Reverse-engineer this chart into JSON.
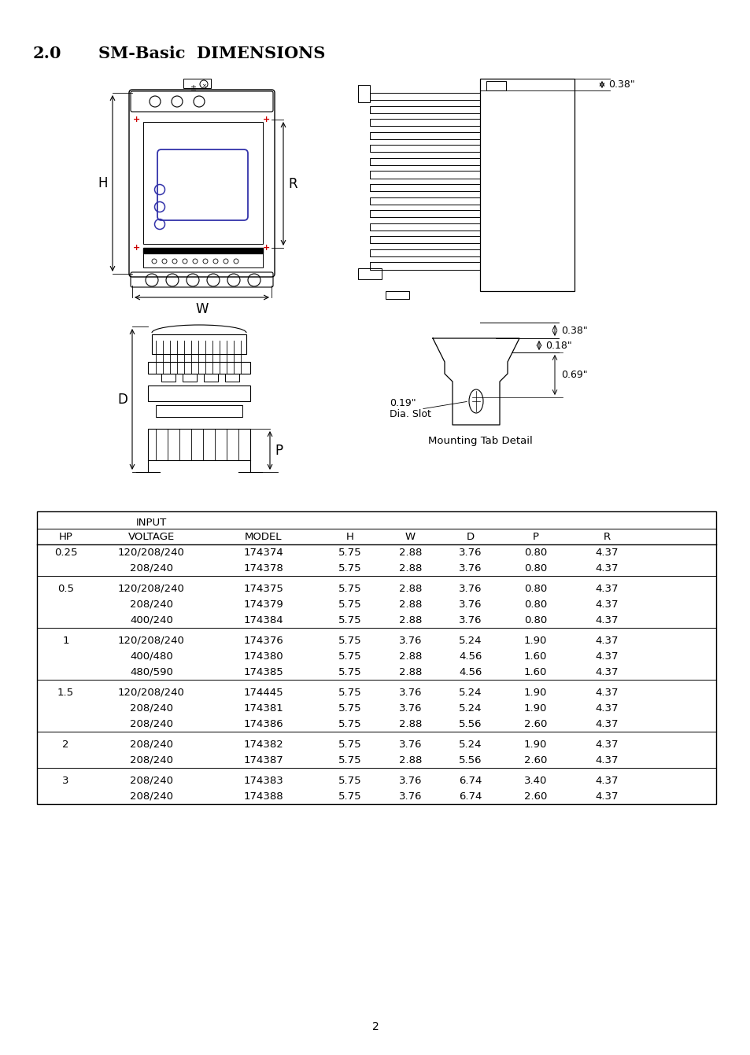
{
  "title_number": "2.0",
  "title_text": "SM-Basic  DIMENSIONS",
  "page_number": "2",
  "table_header_row1": [
    "",
    "INPUT",
    "",
    "",
    "",
    "",
    "",
    ""
  ],
  "table_header_row2": [
    "HP",
    "VOLTAGE",
    "MODEL",
    "H",
    "W",
    "D",
    "P",
    "R"
  ],
  "table_data": [
    [
      "0.25",
      "120/208/240",
      "174374",
      "5.75",
      "2.88",
      "3.76",
      "0.80",
      "4.37"
    ],
    [
      "",
      "208/240",
      "174378",
      "5.75",
      "2.88",
      "3.76",
      "0.80",
      "4.37"
    ],
    [
      "0.5",
      "120/208/240",
      "174375",
      "5.75",
      "2.88",
      "3.76",
      "0.80",
      "4.37"
    ],
    [
      "",
      "208/240",
      "174379",
      "5.75",
      "2.88",
      "3.76",
      "0.80",
      "4.37"
    ],
    [
      "",
      "400/240",
      "174384",
      "5.75",
      "2.88",
      "3.76",
      "0.80",
      "4.37"
    ],
    [
      "1",
      "120/208/240",
      "174376",
      "5.75",
      "3.76",
      "5.24",
      "1.90",
      "4.37"
    ],
    [
      "",
      "400/480",
      "174380",
      "5.75",
      "2.88",
      "4.56",
      "1.60",
      "4.37"
    ],
    [
      "",
      "480/590",
      "174385",
      "5.75",
      "2.88",
      "4.56",
      "1.60",
      "4.37"
    ],
    [
      "1.5",
      "120/208/240",
      "174445",
      "5.75",
      "3.76",
      "5.24",
      "1.90",
      "4.37"
    ],
    [
      "",
      "208/240",
      "174381",
      "5.75",
      "3.76",
      "5.24",
      "1.90",
      "4.37"
    ],
    [
      "",
      "208/240",
      "174386",
      "5.75",
      "2.88",
      "5.56",
      "2.60",
      "4.37"
    ],
    [
      "2",
      "208/240",
      "174382",
      "5.75",
      "3.76",
      "5.24",
      "1.90",
      "4.37"
    ],
    [
      "",
      "208/240",
      "174387",
      "5.75",
      "2.88",
      "5.56",
      "2.60",
      "4.37"
    ],
    [
      "3",
      "208/240",
      "174383",
      "5.75",
      "3.76",
      "6.74",
      "3.40",
      "4.37"
    ],
    [
      "",
      "208/240",
      "174388",
      "5.75",
      "3.76",
      "6.74",
      "2.60",
      "4.37"
    ]
  ],
  "group_separators_after": [
    1,
    4,
    7,
    10,
    12
  ],
  "mounting_detail_label": "Mounting Tab Detail",
  "dim_0_38_top": "0.38\"",
  "dim_0_38_mid": "0.38\"",
  "dim_0_18": "0.18\"",
  "dim_0_69": "0.69\"",
  "dim_0_19": "0.19\"",
  "dim_dia_slot": "Dia. Slot",
  "label_H": "H",
  "label_W": "W",
  "label_R": "R",
  "label_D": "D",
  "label_P": "P",
  "bg_color": "#ffffff",
  "text_color": "#000000",
  "line_color": "#000000",
  "red_color": "#cc0000",
  "blue_color": "#3333aa",
  "title_fontsize": 15,
  "table_fontsize": 9.5
}
